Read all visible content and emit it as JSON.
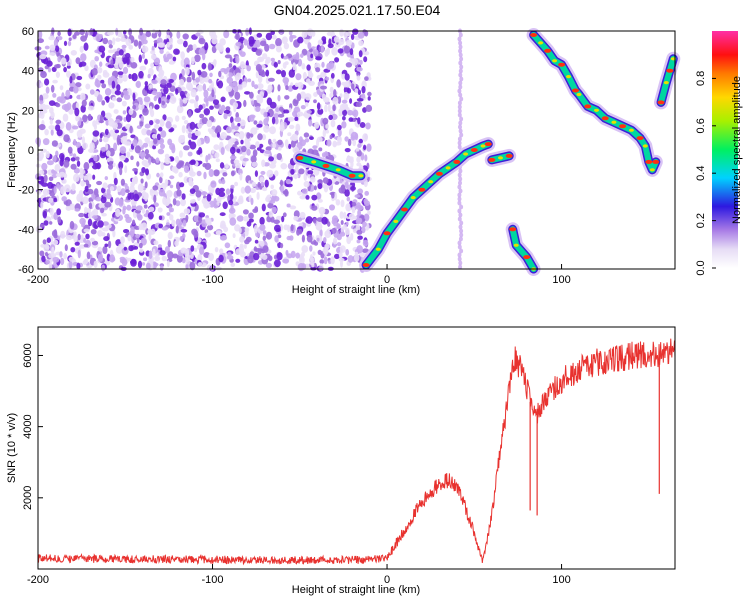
{
  "title": "GN04.2025.021.17.50.E04",
  "colors": {
    "signal_low": "#9b6bdc",
    "snr_line": "#e8322f",
    "dot": "#6a1fd6"
  },
  "chart_data": [
    {
      "type": "heatmap",
      "title": "GN04.2025.021.17.50.E04",
      "xlabel": "Height of straight line (km)",
      "ylabel": "Frequency (Hz)",
      "xlim": [
        -200,
        165
      ],
      "ylim": [
        -60,
        60
      ],
      "xticks": [
        -200,
        -100,
        0,
        100
      ],
      "yticks": [
        -60,
        -40,
        -20,
        0,
        20,
        40,
        60
      ],
      "grid": false,
      "colorbar": {
        "label": "Normalized spectral amplitude",
        "range": [
          0,
          1
        ],
        "ticks": [
          "0.0",
          "0.2",
          "0.4",
          "0.6",
          "0.8"
        ],
        "colormap": "white-purple-blue-cyan-green-yellow-orange-red-magenta"
      },
      "noise_region_x": [
        -200,
        -10
      ],
      "traces": [
        {
          "points": [
            [
              -50,
              -4
            ],
            [
              -42,
              -6
            ],
            [
              -35,
              -8
            ],
            [
              -28,
              -10
            ],
            [
              -20,
              -13
            ],
            [
              -15,
              -13
            ]
          ]
        },
        {
          "points": [
            [
              -12,
              -58
            ],
            [
              -5,
              -50
            ],
            [
              0,
              -42
            ],
            [
              5,
              -36
            ],
            [
              10,
              -30
            ],
            [
              15,
              -24
            ],
            [
              20,
              -20
            ],
            [
              25,
              -16
            ],
            [
              30,
              -12
            ],
            [
              35,
              -9
            ],
            [
              40,
              -6
            ],
            [
              45,
              -2
            ],
            [
              50,
              0
            ],
            [
              55,
              2
            ],
            [
              58,
              3
            ]
          ]
        },
        {
          "points": [
            [
              60,
              -5
            ],
            [
              65,
              -4
            ],
            [
              70,
              -3
            ]
          ]
        },
        {
          "points": [
            [
              72,
              -40
            ],
            [
              74,
              -48
            ],
            [
              80,
              -54
            ],
            [
              84,
              -60
            ]
          ]
        },
        {
          "points": [
            [
              84,
              58
            ],
            [
              88,
              54
            ],
            [
              92,
              50
            ],
            [
              96,
              45
            ],
            [
              100,
              43
            ],
            [
              104,
              37
            ],
            [
              108,
              30
            ],
            [
              110,
              28
            ],
            [
              115,
              22
            ],
            [
              120,
              20
            ],
            [
              125,
              16
            ],
            [
              130,
              14
            ],
            [
              135,
              12
            ],
            [
              140,
              10
            ],
            [
              145,
              6
            ],
            [
              148,
              2
            ],
            [
              150,
              -6
            ],
            [
              152,
              -10
            ],
            [
              154,
              -6
            ]
          ]
        },
        {
          "points": [
            [
              157,
              24
            ],
            [
              160,
              34
            ],
            [
              162,
              40
            ],
            [
              164,
              46
            ]
          ]
        }
      ],
      "vertical_bands_x": [
        42
      ]
    },
    {
      "type": "line",
      "xlabel": "Height of straight line (km)",
      "ylabel": "SNR (10 * v/v)",
      "xlim": [
        -200,
        165
      ],
      "ylim": [
        0,
        6800
      ],
      "xticks": [
        -200,
        -100,
        0,
        100
      ],
      "yticks": [
        2000,
        4000,
        6000
      ],
      "grid": false,
      "series": [
        {
          "x": [
            -200,
            -150,
            -100,
            -50,
            -10,
            0,
            10,
            20,
            30,
            35,
            40,
            45,
            50,
            55,
            60,
            65,
            70,
            72,
            74,
            78,
            82,
            86,
            90,
            95,
            100,
            110,
            120,
            130,
            140,
            150,
            160,
            165
          ],
          "values": [
            300,
            280,
            260,
            250,
            260,
            300,
            1100,
            1900,
            2400,
            2500,
            2300,
            1700,
            1000,
            200,
            1500,
            3400,
            5000,
            5800,
            5900,
            5500,
            4700,
            4300,
            4700,
            5000,
            5300,
            5600,
            5800,
            5900,
            6000,
            6000,
            6050,
            6100
          ]
        }
      ],
      "dropouts_x": [
        82,
        86,
        156
      ]
    }
  ]
}
